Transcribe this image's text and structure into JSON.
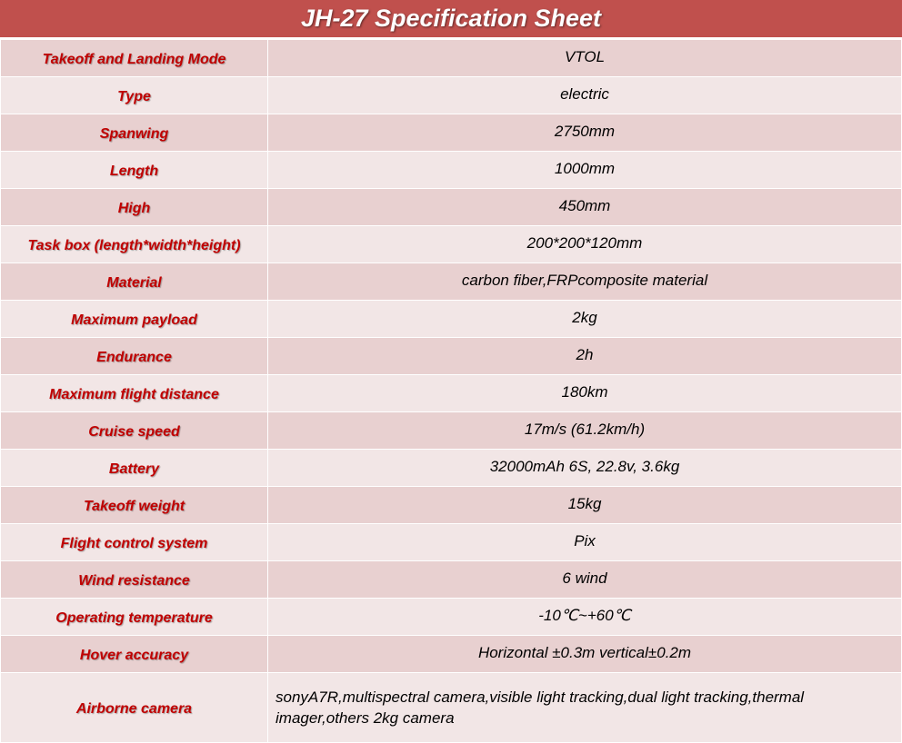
{
  "title": "JH-27 Specification Sheet",
  "colors": {
    "header_bg": "#c0504d",
    "row_dark": "#e8d0d0",
    "row_light": "#f2e6e6",
    "label": "#c00000"
  },
  "rows": [
    {
      "label": "Takeoff and Landing Mode",
      "value": "VTOL"
    },
    {
      "label": "Type",
      "value": "electric"
    },
    {
      "label": "Spanwing",
      "value": "2750mm"
    },
    {
      "label": "Length",
      "value": "1000mm"
    },
    {
      "label": "High",
      "value": "450mm"
    },
    {
      "label": "Task box (length*width*height)",
      "value": "200*200*120mm"
    },
    {
      "label": "Material",
      "value": "carbon fiber,FRPcomposite material"
    },
    {
      "label": "Maximum payload",
      "value": "2kg"
    },
    {
      "label": "Endurance",
      "value": "2h"
    },
    {
      "label": "Maximum flight distance",
      "value": "180km"
    },
    {
      "label": "Cruise speed",
      "value": "17m/s (61.2km/h)"
    },
    {
      "label": "Battery",
      "value": "32000mAh 6S, 22.8v, 3.6kg"
    },
    {
      "label": "Takeoff weight",
      "value": "15kg"
    },
    {
      "label": "Flight control system",
      "value": "Pix"
    },
    {
      "label": "Wind resistance",
      "value": "6 wind"
    },
    {
      "label": "Operating temperature",
      "value": "-10℃~+60℃"
    },
    {
      "label": "Hover accuracy",
      "value": "Horizontal  ±0.3m vertical±0.2m"
    },
    {
      "label": "Airborne camera",
      "value": "sonyA7R,multispectral camera,visible light tracking,dual light tracking,thermal imager,others 2kg camera"
    }
  ]
}
